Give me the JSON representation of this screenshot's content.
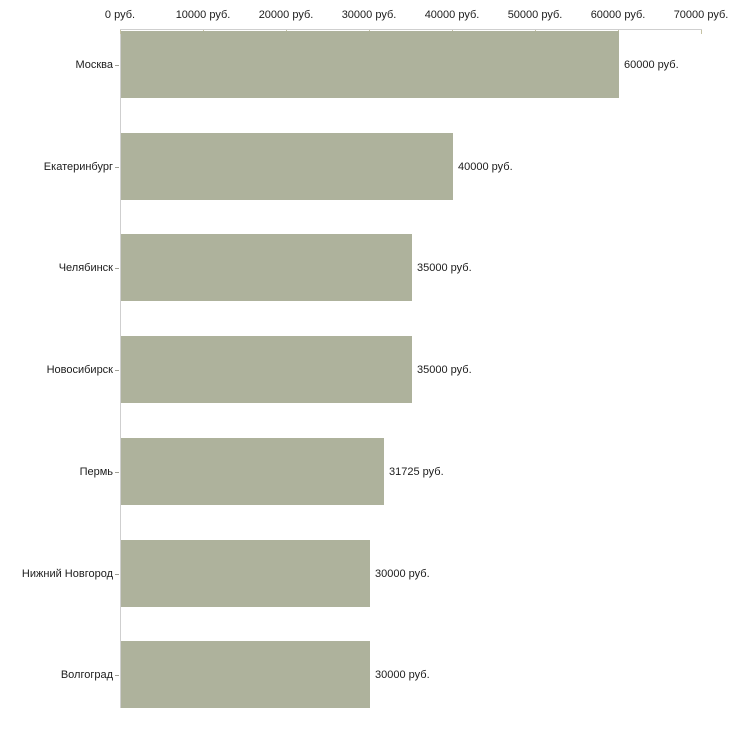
{
  "chart_data": {
    "type": "bar",
    "orientation": "horizontal",
    "title": "",
    "xlabel": "",
    "ylabel": "",
    "unit": "руб.",
    "categories": [
      "Москва",
      "Екатеринбург",
      "Челябинск",
      "Новосибирск",
      "Пермь",
      "Нижний Новгород",
      "Волгоград"
    ],
    "values": [
      60000,
      40000,
      35000,
      35000,
      31725,
      30000,
      30000
    ],
    "value_labels": [
      "60000 руб.",
      "40000 руб.",
      "35000 руб.",
      "35000 руб.",
      "31725 руб.",
      "30000 руб.",
      "30000 руб."
    ],
    "x_ticks": [
      0,
      10000,
      20000,
      30000,
      40000,
      50000,
      60000,
      70000
    ],
    "x_tick_labels": [
      "0 руб.",
      "10000 руб.",
      "20000 руб.",
      "30000 руб.",
      "40000 руб.",
      "50000 руб.",
      "60000 руб.",
      "70000 руб."
    ],
    "xlim": [
      0,
      70000
    ],
    "grid": false,
    "legend": false,
    "colors": {
      "bar_fill": "#aeb29c",
      "axis_line": "#cfcfcf",
      "x_tick_mark": "#c5c2a4",
      "y_tick_mark": "#a0a096",
      "text": "#1c1c1c",
      "background": "#ffffff"
    }
  }
}
